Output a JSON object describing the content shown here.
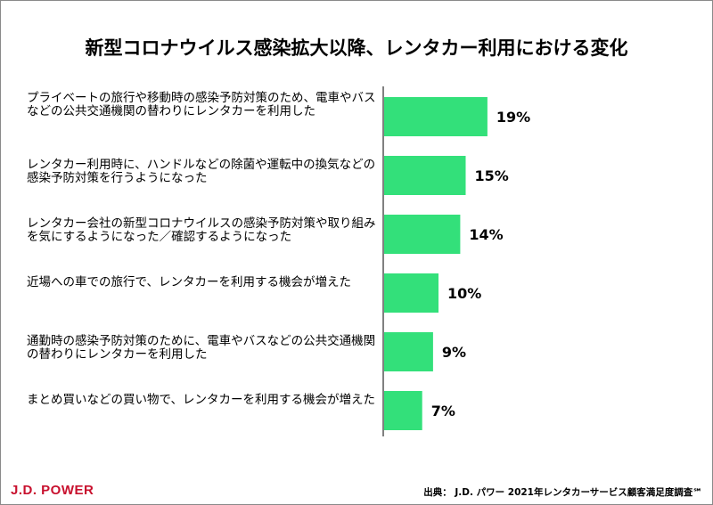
{
  "title": "新型コロナウイルス感染拡大以降、レンタカー利用における変化",
  "logo_text": "J.D. POWER",
  "source": "出典： J.D. パワー 2021年レンタカーサービス顧客満足度調査℠",
  "colors": {
    "bar": "#33e07a",
    "axis": "#000000",
    "logo": "#c8102e"
  },
  "chart_data": {
    "type": "bar",
    "orientation": "horizontal",
    "categories": [
      "プライベートの旅行や移動時の感染予防対策のため、電車やバスなどの公共交通機関の替わりにレンタカーを利用した",
      "レンタカー利用時に、ハンドルなどの除菌や運転中の換気などの感染予防対策を行うようになった",
      "レンタカー会社の新型コロナウイルスの感染予防対策や取り組みを気にするようになった／確認するようになった",
      "近場への車での旅行で、レンタカーを利用する機会が増えた",
      "通勤時の感染予防対策のために、電車やバスなどの公共交通機関の替わりにレンタカーを利用した",
      "まとめ買いなどの買い物で、レンタカーを利用する機会が増えた"
    ],
    "values": [
      19,
      15,
      14,
      10,
      9,
      7
    ],
    "value_labels": [
      "19%",
      "15%",
      "14%",
      "10%",
      "9%",
      "7%"
    ],
    "xlim": [
      0,
      100
    ],
    "grid": false,
    "legend": "none"
  }
}
